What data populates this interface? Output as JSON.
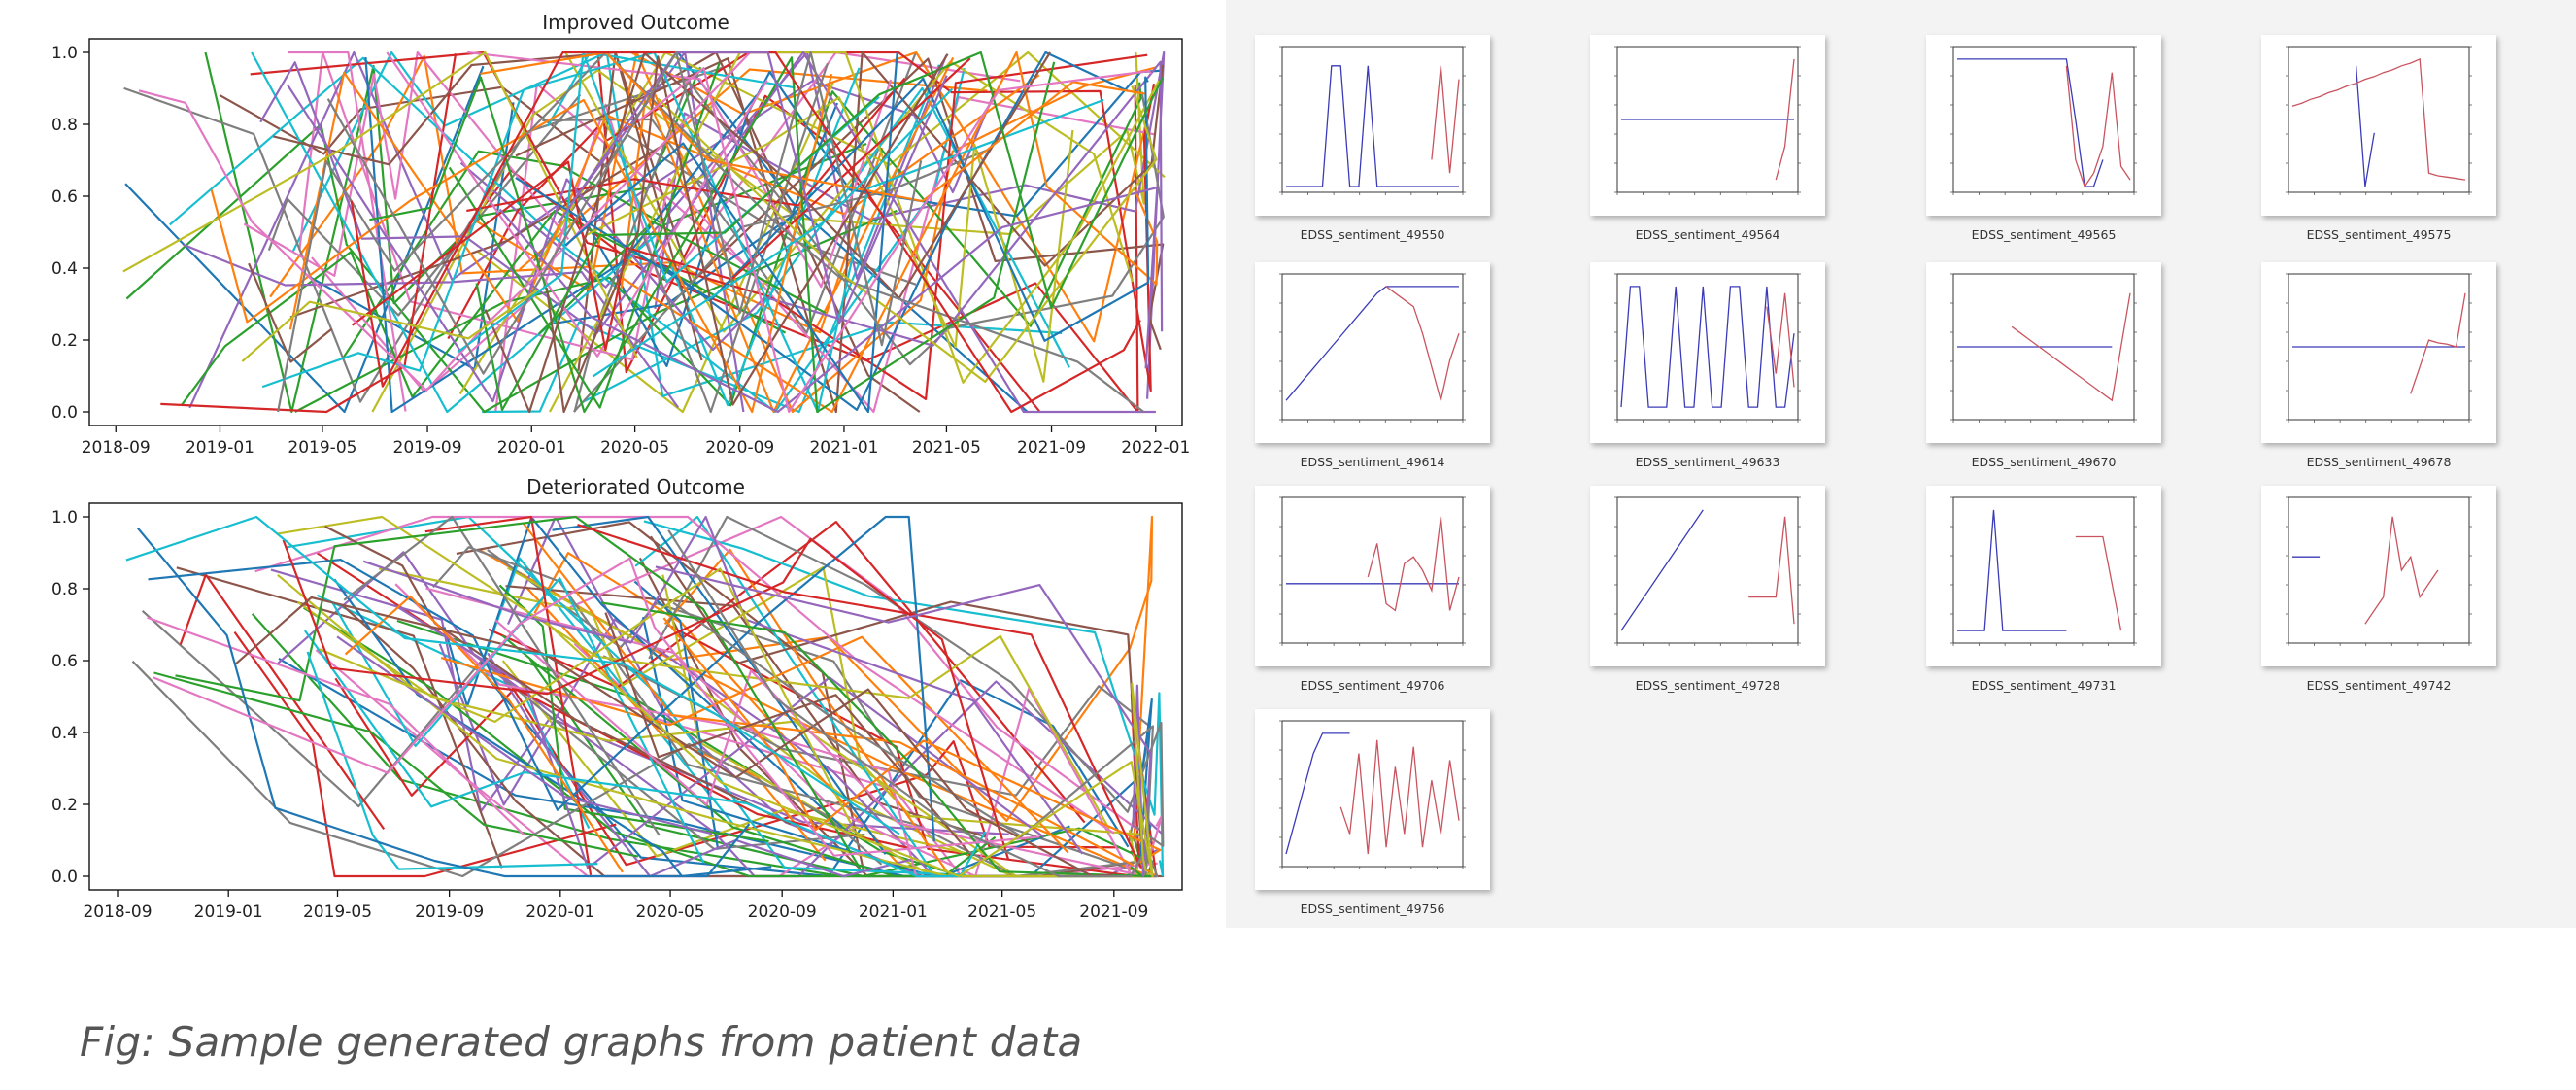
{
  "colors": {
    "palette": [
      "#1f77b4",
      "#ff7f0e",
      "#2ca02c",
      "#d62728",
      "#9467bd",
      "#8c564b",
      "#e377c2",
      "#7f7f7f",
      "#bcbd22",
      "#17becf"
    ],
    "edss_line": "#3b3bb8",
    "sentiment_line": "#c9545f"
  },
  "chart_data": [
    {
      "type": "line",
      "title": "Improved Outcome",
      "x_tick_labels": [
        "2018-09",
        "2019-01",
        "2019-05",
        "2019-09",
        "2020-01",
        "2020-05",
        "2020-09",
        "2021-01",
        "2021-05",
        "2021-09",
        "2022-01"
      ],
      "y_tick_labels": [
        "0.0",
        "0.2",
        "0.4",
        "0.6",
        "0.8",
        "1.0"
      ],
      "ylim": [
        0,
        1.0
      ],
      "xlim": [
        "2018-08-01",
        "2022-02-01"
      ],
      "grid": false,
      "series_count": 90
    },
    {
      "type": "line",
      "title": "Deteriorated Outcome",
      "x_tick_labels": [
        "2018-09",
        "2019-01",
        "2019-05",
        "2019-09",
        "2020-01",
        "2020-05",
        "2020-09",
        "2021-01",
        "2021-05",
        "2021-09"
      ],
      "y_tick_labels": [
        "0.0",
        "0.2",
        "0.4",
        "0.6",
        "0.8",
        "1.0"
      ],
      "ylim": [
        0,
        1.0
      ],
      "xlim": [
        "2018-08-01",
        "2021-11-15"
      ],
      "grid": false,
      "series_count": 90
    }
  ],
  "thumbnails": [
    {
      "label": "EDSS_sentiment_49550",
      "edss": [
        0,
        0,
        0,
        0,
        0,
        0.9,
        0.9,
        0,
        0,
        0.9,
        0,
        0,
        0,
        0,
        0,
        0,
        0,
        0,
        0,
        0
      ],
      "sentiment": [
        null,
        null,
        null,
        null,
        null,
        null,
        null,
        null,
        null,
        null,
        null,
        null,
        null,
        null,
        null,
        null,
        0.2,
        0.9,
        0.1,
        0.8
      ]
    },
    {
      "label": "EDSS_sentiment_49564",
      "edss": [
        0.5,
        0.5,
        0.5,
        0.5,
        0.5,
        0.5,
        0.5,
        0.5,
        0.5,
        0.5,
        0.5,
        0.5,
        0.5,
        0.5,
        0.5,
        0.5,
        0.5,
        0.5,
        0.5,
        0.5
      ],
      "sentiment": [
        null,
        null,
        null,
        null,
        null,
        null,
        null,
        null,
        null,
        null,
        null,
        null,
        null,
        null,
        null,
        null,
        null,
        0.05,
        0.3,
        0.95
      ]
    },
    {
      "label": "EDSS_sentiment_49565",
      "edss": [
        0.95,
        0.95,
        0.95,
        0.95,
        0.95,
        0.95,
        0.95,
        0.95,
        0.95,
        0.95,
        0.95,
        0.95,
        0.95,
        0.5,
        0.0,
        0.0,
        0.2,
        null,
        null,
        null
      ],
      "sentiment": [
        null,
        null,
        null,
        null,
        null,
        null,
        null,
        null,
        null,
        null,
        null,
        null,
        0.9,
        0.2,
        0.0,
        0.1,
        0.3,
        0.85,
        0.15,
        0.05
      ]
    },
    {
      "label": "EDSS_sentiment_49575",
      "edss": [
        null,
        null,
        null,
        null,
        null,
        null,
        null,
        0.9,
        0.0,
        0.4,
        null,
        null,
        null,
        null,
        null,
        null,
        null,
        null,
        null,
        null
      ],
      "sentiment": [
        0.6,
        0.62,
        0.65,
        0.67,
        0.7,
        0.72,
        0.75,
        0.77,
        0.8,
        0.82,
        0.85,
        0.87,
        0.9,
        0.92,
        0.95,
        0.1,
        0.08,
        0.07,
        0.06,
        0.05
      ]
    },
    {
      "label": "EDSS_sentiment_49614",
      "edss": [
        0.1,
        0.18,
        0.26,
        0.34,
        0.42,
        0.5,
        0.58,
        0.66,
        0.74,
        0.82,
        0.9,
        0.95,
        0.95,
        0.95,
        0.95,
        0.95,
        0.95,
        0.95,
        0.95,
        0.95
      ],
      "sentiment": [
        null,
        null,
        null,
        null,
        null,
        null,
        null,
        null,
        null,
        null,
        null,
        0.95,
        0.9,
        0.85,
        0.8,
        0.6,
        0.35,
        0.1,
        0.4,
        0.6
      ]
    },
    {
      "label": "EDSS_sentiment_49633",
      "edss": [
        0.05,
        0.95,
        0.95,
        0.05,
        0.05,
        0.05,
        0.95,
        0.05,
        0.05,
        0.95,
        0.05,
        0.05,
        0.95,
        0.95,
        0.05,
        0.05,
        0.95,
        0.05,
        0.05,
        0.6
      ],
      "sentiment": [
        null,
        null,
        null,
        null,
        null,
        null,
        null,
        null,
        null,
        null,
        null,
        null,
        null,
        null,
        null,
        null,
        0.8,
        0.3,
        0.9,
        0.2
      ]
    },
    {
      "label": "EDSS_sentiment_49670",
      "edss": [
        0.5,
        0.5,
        0.5,
        0.5,
        0.5,
        0.5,
        0.5,
        0.5,
        0.5,
        0.5,
        0.5,
        0.5,
        0.5,
        0.5,
        0.5,
        0.5,
        0.5,
        0.5,
        null,
        null
      ],
      "sentiment": [
        null,
        null,
        null,
        null,
        null,
        null,
        0.65,
        0.6,
        0.55,
        0.5,
        0.45,
        0.4,
        0.35,
        0.3,
        0.25,
        0.2,
        0.15,
        0.1,
        0.5,
        0.9
      ]
    },
    {
      "label": "EDSS_sentiment_49678",
      "edss": [
        0.5,
        0.5,
        0.5,
        0.5,
        0.5,
        0.5,
        0.5,
        0.5,
        0.5,
        0.5,
        0.5,
        0.5,
        0.5,
        0.5,
        0.5,
        0.5,
        0.5,
        0.5,
        0.5,
        0.5
      ],
      "sentiment": [
        null,
        null,
        null,
        null,
        null,
        null,
        null,
        null,
        null,
        null,
        null,
        null,
        null,
        0.15,
        0.35,
        0.55,
        0.53,
        0.52,
        0.5,
        0.9
      ]
    },
    {
      "label": "EDSS_sentiment_49706",
      "edss": [
        0.4,
        0.4,
        0.4,
        0.4,
        0.4,
        0.4,
        0.4,
        0.4,
        0.4,
        0.4,
        0.4,
        0.4,
        0.4,
        0.4,
        0.4,
        0.4,
        0.4,
        0.4,
        0.4,
        0.4
      ],
      "sentiment": [
        null,
        null,
        null,
        null,
        null,
        null,
        null,
        null,
        null,
        0.45,
        0.7,
        0.25,
        0.2,
        0.55,
        0.6,
        0.5,
        0.35,
        0.9,
        0.2,
        0.45
      ]
    },
    {
      "label": "EDSS_sentiment_49728",
      "edss": [
        0.05,
        0.15,
        0.25,
        0.35,
        0.45,
        0.55,
        0.65,
        0.75,
        0.85,
        0.95,
        null,
        null,
        null,
        null,
        null,
        null,
        null,
        null,
        null,
        null
      ],
      "sentiment": [
        null,
        null,
        null,
        null,
        null,
        null,
        null,
        null,
        null,
        null,
        null,
        null,
        null,
        null,
        0.3,
        0.3,
        0.3,
        0.3,
        0.9,
        0.1
      ]
    },
    {
      "label": "EDSS_sentiment_49731",
      "edss": [
        0.05,
        0.05,
        0.05,
        0.05,
        0.95,
        0.05,
        0.05,
        0.05,
        0.05,
        0.05,
        0.05,
        0.05,
        0.05,
        null,
        null,
        null,
        null,
        null,
        null,
        null
      ],
      "sentiment": [
        null,
        null,
        null,
        null,
        null,
        null,
        null,
        null,
        null,
        null,
        null,
        null,
        null,
        0.75,
        0.75,
        0.75,
        0.75,
        0.4,
        0.05,
        null
      ]
    },
    {
      "label": "EDSS_sentiment_49742",
      "edss": [
        0.6,
        0.6,
        0.6,
        0.6,
        null,
        null,
        null,
        null,
        null,
        null,
        null,
        null,
        null,
        null,
        null,
        null,
        null,
        null,
        null,
        null
      ],
      "sentiment": [
        null,
        null,
        null,
        null,
        null,
        null,
        null,
        null,
        0.1,
        0.2,
        0.3,
        0.9,
        0.5,
        0.6,
        0.3,
        0.4,
        0.5,
        null,
        null,
        null
      ]
    },
    {
      "label": "EDSS_sentiment_49756",
      "edss": [
        0.05,
        0.3,
        0.55,
        0.8,
        0.95,
        0.95,
        0.95,
        0.95,
        null,
        null,
        null,
        null,
        null,
        null,
        null,
        null,
        null,
        null,
        null,
        null
      ],
      "sentiment": [
        null,
        null,
        null,
        null,
        null,
        null,
        0.4,
        0.2,
        0.8,
        0.05,
        0.9,
        0.1,
        0.7,
        0.2,
        0.85,
        0.1,
        0.6,
        0.2,
        0.75,
        0.3
      ]
    }
  ],
  "caption": "Fig: Sample generated graphs from patient data"
}
